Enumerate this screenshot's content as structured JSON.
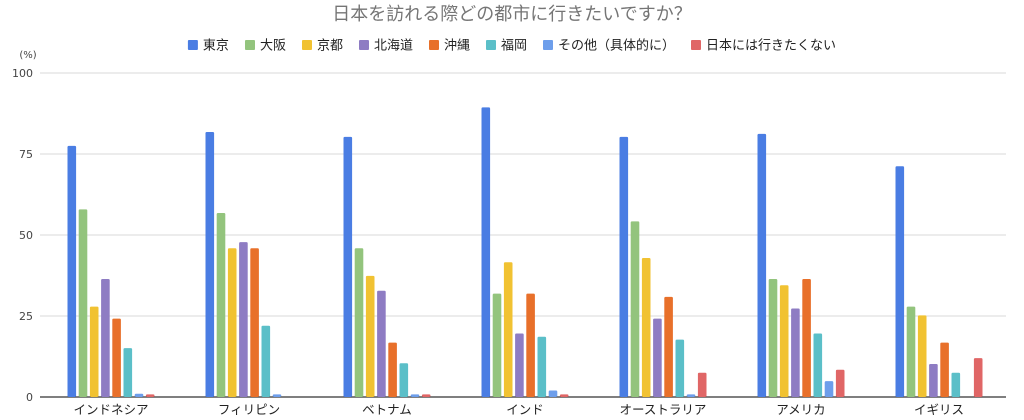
{
  "chart_data": {
    "type": "bar",
    "title": "日本を訪れる際どの都市に行きたいですか？",
    "ylabel": "(%)",
    "xlabel": "",
    "ylim": [
      0,
      100
    ],
    "yticks": [
      0,
      25,
      50,
      75,
      100
    ],
    "grid": true,
    "legend_position": "top",
    "categories": [
      "インドネシア",
      "フィリピン",
      "ベトナム",
      "インド",
      "オーストラリア",
      "アメリカ",
      "イギリス"
    ],
    "series": [
      {
        "name": "東京",
        "color": "#4a7de3",
        "values": [
          77.5,
          81.8,
          80.3,
          89.4,
          80.3,
          81.2,
          71.2
        ]
      },
      {
        "name": "大阪",
        "color": "#93c47d",
        "values": [
          57.9,
          56.8,
          45.9,
          31.9,
          54.2,
          36.4,
          27.9
        ]
      },
      {
        "name": "京都",
        "color": "#f1c232",
        "values": [
          27.9,
          45.9,
          37.4,
          41.6,
          42.9,
          34.5,
          25.2
        ]
      },
      {
        "name": "北海道",
        "color": "#8e7cc3",
        "values": [
          36.4,
          47.8,
          32.8,
          19.6,
          24.2,
          27.3,
          10.2
        ]
      },
      {
        "name": "沖縄",
        "color": "#e8702a",
        "values": [
          24.2,
          45.9,
          16.8,
          31.9,
          30.9,
          36.4,
          16.8
        ]
      },
      {
        "name": "福岡",
        "color": "#5bbfc8",
        "values": [
          15.1,
          22.0,
          10.4,
          18.6,
          17.7,
          19.6,
          7.5
        ]
      },
      {
        "name": "その他（具体的に）",
        "color": "#6d9eeb",
        "values": [
          1.0,
          0.8,
          0.8,
          2.0,
          0.8,
          4.9,
          0
        ]
      },
      {
        "name": "日本には行きたくない",
        "color": "#e06666",
        "values": [
          0.8,
          0,
          0.8,
          0.8,
          7.5,
          8.4,
          12.0
        ]
      }
    ]
  }
}
